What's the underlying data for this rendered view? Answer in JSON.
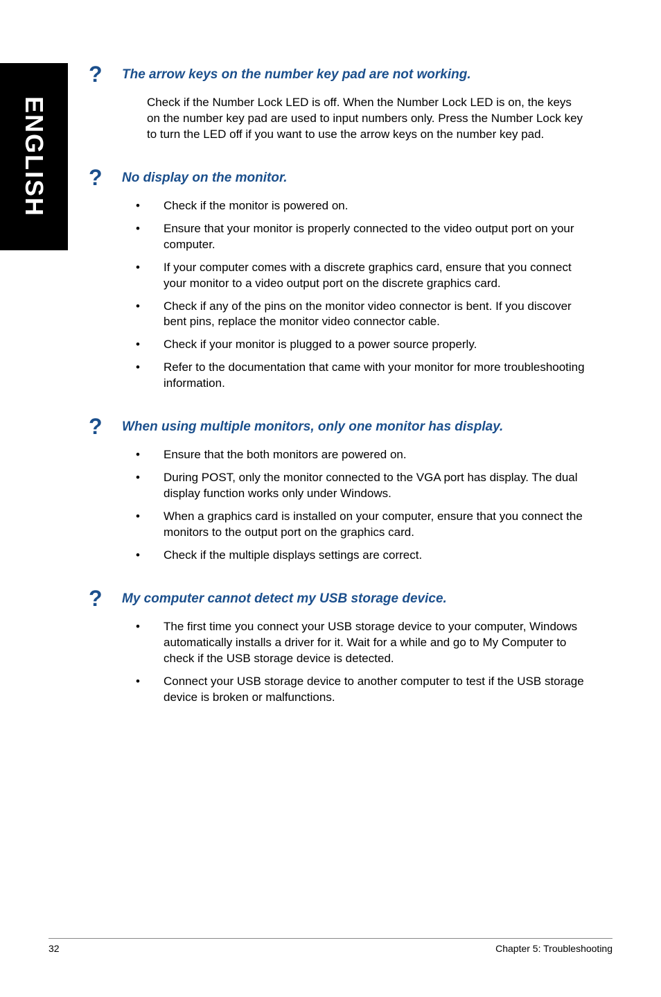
{
  "sideTab": {
    "label": "ENGLISH"
  },
  "sections": [
    {
      "title": "The arrow keys on the number key pad are not working.",
      "paragraph": "Check if the Number Lock LED is off. When the Number Lock LED is on, the keys on the number key pad are used to input numbers only. Press the Number Lock key to turn the LED off if you want to use the arrow keys on the number key pad.",
      "bullets": []
    },
    {
      "title": "No display on the monitor.",
      "paragraph": "",
      "bullets": [
        "Check if the monitor is powered on.",
        "Ensure that your monitor is properly connected to the video output port on your computer.",
        "If your computer comes with a discrete graphics card, ensure that you connect your monitor to a video output port on the discrete graphics card.",
        "Check if any of the pins on the monitor video connector is bent. If you discover bent pins, replace the monitor video connector cable.",
        "Check if your monitor is plugged to a power source properly.",
        "Refer to the documentation that came with your monitor for more troubleshooting information."
      ]
    },
    {
      "title": "When using multiple monitors, only one monitor has display.",
      "paragraph": "",
      "bullets": [
        "Ensure that the both monitors are powered on.",
        "During POST, only the monitor connected to the VGA port has display. The dual display function works only under Windows.",
        "When a graphics card is installed on your computer, ensure that you connect the monitors to the output port on the graphics card.",
        "Check if the multiple displays settings are correct."
      ]
    },
    {
      "title": "My computer cannot detect my USB storage device.",
      "paragraph": "",
      "bullets": [
        "The first time you connect your USB storage device to your computer, Windows automatically installs a driver for it. Wait for a while and go to My Computer to check if the USB storage device is detected.",
        "Connect your USB storage device to another computer to test if the USB storage device is broken or malfunctions."
      ]
    }
  ],
  "footer": {
    "pageNumber": "32",
    "chapter": "Chapter 5: Troubleshooting"
  },
  "colors": {
    "headingBlue": "#1b4f8c",
    "black": "#000000",
    "white": "#ffffff",
    "footerRule": "#888888"
  }
}
